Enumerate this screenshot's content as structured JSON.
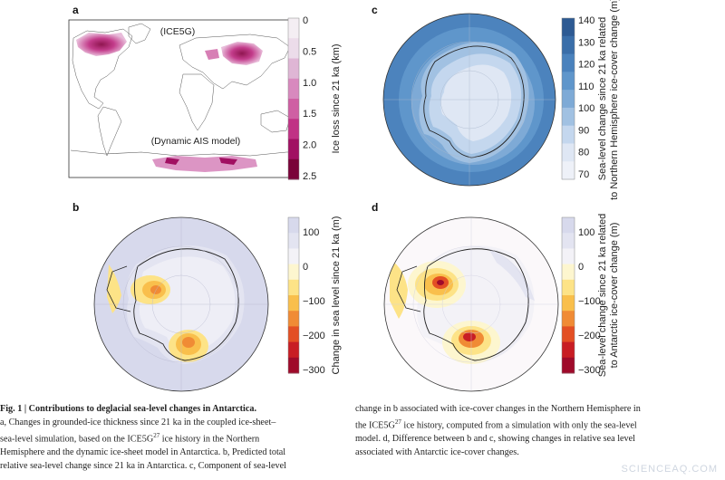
{
  "panels": {
    "a": {
      "letter": "a",
      "label_top": "(ICE5G)",
      "label_bottom": "(Dynamic AIS model)",
      "colorbar": {
        "title": "Ice loss since 21 ka (km)",
        "ticks": [
          "0",
          "0.5",
          "1.0",
          "1.5",
          "2.0",
          "2.5"
        ],
        "colors": [
          "#f4eef3",
          "#ecdcea",
          "#dfb6d5",
          "#d889be",
          "#cf5fa3",
          "#c03285",
          "#a11062",
          "#7a0339"
        ]
      }
    },
    "b": {
      "letter": "b",
      "colorbar": {
        "title": "Change in sea level since 21 ka (m)",
        "ticks": [
          "100",
          "0",
          "−100",
          "−200",
          "−300"
        ],
        "colors": [
          "#d7d9ec",
          "#e3e4f1",
          "#f3f2f7",
          "#fdf6cf",
          "#fde387",
          "#f9bf4c",
          "#f08b35",
          "#e34f24",
          "#c81d24",
          "#9f0a2a"
        ]
      }
    },
    "c": {
      "letter": "c",
      "colorbar": {
        "title_line1": "Sea-level change since 21 ka related",
        "title_line2": "to Northern Hemisphere ice-cover change (m)",
        "ticks": [
          "140",
          "130",
          "120",
          "110",
          "100",
          "90",
          "80",
          "70"
        ],
        "colors": [
          "#2d5a93",
          "#3a6ea9",
          "#4a82bd",
          "#5f96cb",
          "#7eaad6",
          "#a1c1e2",
          "#c4d7ee",
          "#dfe7f4",
          "#eef1f8"
        ]
      }
    },
    "d": {
      "letter": "d",
      "colorbar": {
        "title_line1": "Sea-level change since 21 ka related",
        "title_line2": "to Antarctic ice-cover change (m)",
        "ticks": [
          "100",
          "0",
          "−100",
          "−200",
          "−300"
        ],
        "colors": [
          "#d7d9ec",
          "#e3e4f1",
          "#f3f2f7",
          "#fdf6cf",
          "#fde387",
          "#f9bf4c",
          "#f08b35",
          "#e34f24",
          "#c81d24",
          "#9f0a2a"
        ]
      }
    }
  },
  "caption_left": {
    "line1_bold": "Fig. 1 | Contributions to deglacial sea-level changes in Antarctica.",
    "line2": "a, Changes in grounded-ice thickness since 21 ka in the coupled ice-sheet–",
    "line3": "sea-level simulation, based on the ICE5G",
    "line3_sup": "27",
    "line3_rest": " ice history in the Northern",
    "line4": "Hemisphere and the dynamic ice-sheet model in Antarctica. b, Predicted total",
    "line5": "relative sea-level change since 21 ka in Antarctica. c, Component of sea-level"
  },
  "caption_right": {
    "line1": "change in b associated with ice-cover changes in the Northern Hemisphere in",
    "line2": "the ICE5G",
    "line2_sup": "27",
    "line2_rest": " ice history, computed from a simulation with only the sea-level",
    "line3": "model. d, Difference between b and c, showing changes in relative sea level",
    "line4": "associated with Antarctic ice-cover changes."
  },
  "watermark": "SCIENCEAQ.COM"
}
